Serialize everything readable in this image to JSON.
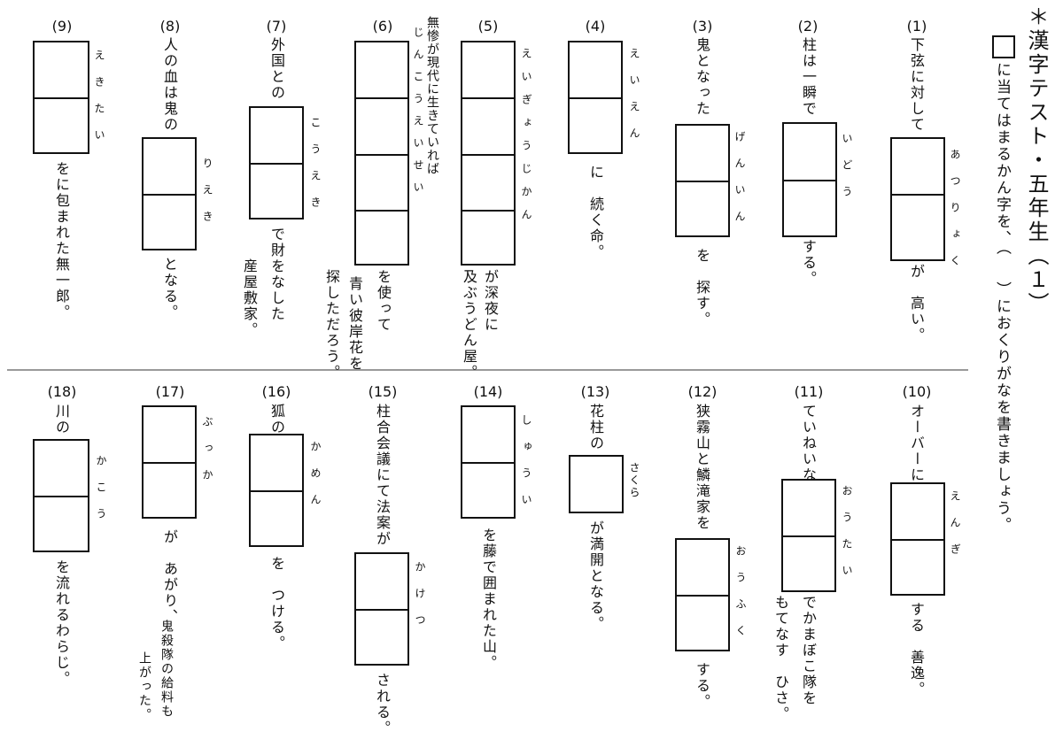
{
  "header": {
    "title": "＊漢字テスト・五年生（１）",
    "instruction_box": "□",
    "instruction_1": "に当てはまるかん字を、（",
    "instruction_2": "）におくりがなを書きましょう。"
  },
  "questions": [
    {
      "num": "(1)",
      "before": "下弦に対して",
      "furigana": "あつりょく",
      "after": "が　高い。"
    },
    {
      "num": "(2)",
      "before": "柱は一瞬で",
      "furigana": "いどう",
      "after": "する。"
    },
    {
      "num": "(3)",
      "before": "鬼となった",
      "furigana": "げんいん",
      "after": "を　探す。"
    },
    {
      "num": "(4)",
      "before": "",
      "furigana": "えいえん",
      "after": "に　続く命。"
    },
    {
      "num": "(5)",
      "before": "",
      "furigana": "えいぎょうじかん",
      "after": "が深夜に",
      "after2": "及ぶうどん屋。"
    },
    {
      "num": "(6)",
      "before": "無惨が現代に生きていれば",
      "furigana_top": "じんこうえいせい",
      "furigana": "",
      "after": "を使って",
      "after2": "青い彼岸花を",
      "after3": "探しただろう。"
    },
    {
      "num": "(7)",
      "before": "外国との",
      "furigana": "こうえき",
      "after": "で財をなした",
      "after2": "産屋敷家。"
    },
    {
      "num": "(8)",
      "before": "人の血は鬼の",
      "furigana": "りえき",
      "after": "となる。"
    },
    {
      "num": "(9)",
      "before": "",
      "furigana": "えきたい",
      "after": "をに包まれた無一郎。"
    },
    {
      "num": "(10)",
      "before": "オーバーに",
      "furigana": "えんぎ",
      "after": "する　善逸。"
    },
    {
      "num": "(11)",
      "before": "ていねいな",
      "furigana": "おうたい",
      "after": "でかまぼこ隊を",
      "after2": "もてなす　ひさ。"
    },
    {
      "num": "(12)",
      "before": "狭霧山と鱗滝家を",
      "furigana": "おうふく",
      "after": "する。"
    },
    {
      "num": "(13)",
      "before": "花柱の",
      "furigana": "さくら",
      "after": "が満開となる。"
    },
    {
      "num": "(14)",
      "before": "",
      "furigana": "しゅうい",
      "after": "を藤で囲まれた山。"
    },
    {
      "num": "(15)",
      "before": "柱合会議にて法案が",
      "furigana": "かけつ",
      "after": "される。"
    },
    {
      "num": "(16)",
      "before": "狐の",
      "furigana": "かめん",
      "after": "を　つける。"
    },
    {
      "num": "(17)",
      "before": "",
      "furigana": "ぶっか",
      "after": "が　あがり、",
      "after2": "鬼殺隊の給料も",
      "after3": "上がった。"
    },
    {
      "num": "(18)",
      "before": "川の",
      "furigana": "かこう",
      "after": "を流れるわらじ。"
    }
  ]
}
